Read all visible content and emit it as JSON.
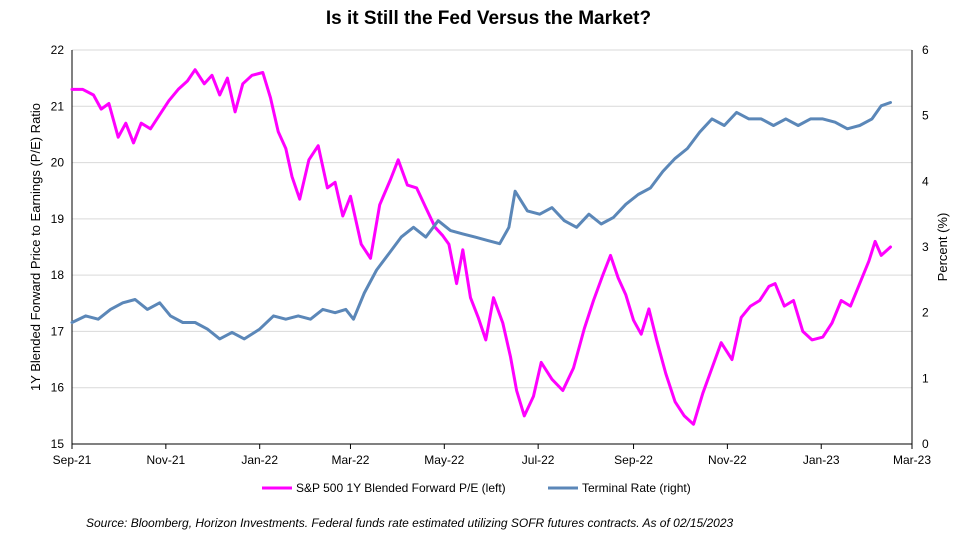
{
  "chart_data": {
    "type": "line",
    "title": "Is it Still the Fed Versus the Market?",
    "source": "Source: Bloomberg, Horizon Investments. Federal funds rate estimated utilizing SOFR futures contracts. As of 02/15/2023",
    "x_tick_labels": [
      "Sep-21",
      "Nov-21",
      "Jan-22",
      "Mar-22",
      "May-22",
      "Jul-22",
      "Sep-22",
      "Nov-22",
      "Jan-23",
      "Mar-23"
    ],
    "x_tick_dates": [
      "2021-09-01",
      "2021-11-01",
      "2022-01-01",
      "2022-03-01",
      "2022-05-01",
      "2022-07-01",
      "2022-09-01",
      "2022-11-01",
      "2023-01-01",
      "2023-03-01"
    ],
    "xlim": [
      "2021-09-01",
      "2023-03-01"
    ],
    "left_axis": {
      "label": "1Y Blended Forward Price to Earnings (P/E) Ratio",
      "ylim": [
        15,
        22
      ],
      "ticks": [
        15,
        16,
        17,
        18,
        19,
        20,
        21,
        22
      ]
    },
    "right_axis": {
      "label": "Percent (%)",
      "ylim": [
        0,
        6
      ],
      "ticks": [
        0,
        1,
        2,
        3,
        4,
        5,
        6
      ]
    },
    "grid": "horizontal",
    "legend_position": "bottom",
    "series": [
      {
        "name": "S&P 500 1Y Blended Forward P/E (left)",
        "axis": "left",
        "color": "#FF00FF",
        "points": [
          [
            "2021-09-01",
            21.3
          ],
          [
            "2021-09-08",
            21.3
          ],
          [
            "2021-09-15",
            21.2
          ],
          [
            "2021-09-20",
            20.95
          ],
          [
            "2021-09-25",
            21.05
          ],
          [
            "2021-10-01",
            20.45
          ],
          [
            "2021-10-06",
            20.7
          ],
          [
            "2021-10-11",
            20.35
          ],
          [
            "2021-10-16",
            20.7
          ],
          [
            "2021-10-22",
            20.6
          ],
          [
            "2021-10-28",
            20.85
          ],
          [
            "2021-11-03",
            21.1
          ],
          [
            "2021-11-09",
            21.3
          ],
          [
            "2021-11-15",
            21.45
          ],
          [
            "2021-11-20",
            21.65
          ],
          [
            "2021-11-26",
            21.4
          ],
          [
            "2021-12-01",
            21.55
          ],
          [
            "2021-12-06",
            21.2
          ],
          [
            "2021-12-11",
            21.5
          ],
          [
            "2021-12-16",
            20.9
          ],
          [
            "2021-12-21",
            21.4
          ],
          [
            "2021-12-27",
            21.55
          ],
          [
            "2022-01-03",
            21.6
          ],
          [
            "2022-01-08",
            21.15
          ],
          [
            "2022-01-13",
            20.55
          ],
          [
            "2022-01-18",
            20.25
          ],
          [
            "2022-01-22",
            19.75
          ],
          [
            "2022-01-27",
            19.35
          ],
          [
            "2022-02-02",
            20.05
          ],
          [
            "2022-02-08",
            20.3
          ],
          [
            "2022-02-14",
            19.55
          ],
          [
            "2022-02-19",
            19.65
          ],
          [
            "2022-02-24",
            19.05
          ],
          [
            "2022-03-01",
            19.4
          ],
          [
            "2022-03-08",
            18.55
          ],
          [
            "2022-03-14",
            18.3
          ],
          [
            "2022-03-20",
            19.25
          ],
          [
            "2022-03-27",
            19.7
          ],
          [
            "2022-04-01",
            20.05
          ],
          [
            "2022-04-07",
            19.6
          ],
          [
            "2022-04-13",
            19.55
          ],
          [
            "2022-04-19",
            19.2
          ],
          [
            "2022-04-25",
            18.85
          ],
          [
            "2022-04-30",
            18.7
          ],
          [
            "2022-05-04",
            18.55
          ],
          [
            "2022-05-09",
            17.85
          ],
          [
            "2022-05-13",
            18.45
          ],
          [
            "2022-05-18",
            17.6
          ],
          [
            "2022-05-23",
            17.25
          ],
          [
            "2022-05-28",
            16.85
          ],
          [
            "2022-06-02",
            17.6
          ],
          [
            "2022-06-08",
            17.15
          ],
          [
            "2022-06-13",
            16.55
          ],
          [
            "2022-06-17",
            15.95
          ],
          [
            "2022-06-22",
            15.5
          ],
          [
            "2022-06-28",
            15.85
          ],
          [
            "2022-07-03",
            16.45
          ],
          [
            "2022-07-10",
            16.15
          ],
          [
            "2022-07-17",
            15.95
          ],
          [
            "2022-07-24",
            16.35
          ],
          [
            "2022-07-31",
            17.05
          ],
          [
            "2022-08-06",
            17.55
          ],
          [
            "2022-08-12",
            18.0
          ],
          [
            "2022-08-17",
            18.35
          ],
          [
            "2022-08-22",
            17.95
          ],
          [
            "2022-08-27",
            17.65
          ],
          [
            "2022-09-01",
            17.2
          ],
          [
            "2022-09-06",
            16.95
          ],
          [
            "2022-09-11",
            17.4
          ],
          [
            "2022-09-16",
            16.85
          ],
          [
            "2022-09-22",
            16.25
          ],
          [
            "2022-09-28",
            15.75
          ],
          [
            "2022-10-04",
            15.5
          ],
          [
            "2022-10-10",
            15.35
          ],
          [
            "2022-10-16",
            15.9
          ],
          [
            "2022-10-22",
            16.35
          ],
          [
            "2022-10-28",
            16.8
          ],
          [
            "2022-11-04",
            16.5
          ],
          [
            "2022-11-10",
            17.25
          ],
          [
            "2022-11-16",
            17.45
          ],
          [
            "2022-11-22",
            17.55
          ],
          [
            "2022-11-28",
            17.8
          ],
          [
            "2022-12-02",
            17.85
          ],
          [
            "2022-12-08",
            17.45
          ],
          [
            "2022-12-14",
            17.55
          ],
          [
            "2022-12-20",
            17.0
          ],
          [
            "2022-12-26",
            16.85
          ],
          [
            "2023-01-02",
            16.9
          ],
          [
            "2023-01-08",
            17.15
          ],
          [
            "2023-01-14",
            17.55
          ],
          [
            "2023-01-20",
            17.45
          ],
          [
            "2023-01-26",
            17.85
          ],
          [
            "2023-02-01",
            18.25
          ],
          [
            "2023-02-05",
            18.6
          ],
          [
            "2023-02-09",
            18.35
          ],
          [
            "2023-02-15",
            18.5
          ]
        ]
      },
      {
        "name": "Terminal Rate (right)",
        "axis": "right",
        "color": "#5B87B8",
        "points": [
          [
            "2021-09-01",
            1.85
          ],
          [
            "2021-09-10",
            1.95
          ],
          [
            "2021-09-18",
            1.9
          ],
          [
            "2021-09-26",
            2.05
          ],
          [
            "2021-10-04",
            2.15
          ],
          [
            "2021-10-12",
            2.2
          ],
          [
            "2021-10-20",
            2.05
          ],
          [
            "2021-10-28",
            2.15
          ],
          [
            "2021-11-04",
            1.95
          ],
          [
            "2021-11-12",
            1.85
          ],
          [
            "2021-11-20",
            1.85
          ],
          [
            "2021-11-28",
            1.75
          ],
          [
            "2021-12-06",
            1.6
          ],
          [
            "2021-12-14",
            1.7
          ],
          [
            "2021-12-22",
            1.6
          ],
          [
            "2022-01-01",
            1.75
          ],
          [
            "2022-01-10",
            1.95
          ],
          [
            "2022-01-18",
            1.9
          ],
          [
            "2022-01-26",
            1.95
          ],
          [
            "2022-02-03",
            1.9
          ],
          [
            "2022-02-11",
            2.05
          ],
          [
            "2022-02-19",
            2.0
          ],
          [
            "2022-02-26",
            2.05
          ],
          [
            "2022-03-03",
            1.9
          ],
          [
            "2022-03-10",
            2.3
          ],
          [
            "2022-03-18",
            2.65
          ],
          [
            "2022-03-26",
            2.9
          ],
          [
            "2022-04-03",
            3.15
          ],
          [
            "2022-04-11",
            3.3
          ],
          [
            "2022-04-19",
            3.15
          ],
          [
            "2022-04-27",
            3.4
          ],
          [
            "2022-05-05",
            3.25
          ],
          [
            "2022-05-13",
            3.2
          ],
          [
            "2022-05-21",
            3.15
          ],
          [
            "2022-05-29",
            3.1
          ],
          [
            "2022-06-06",
            3.05
          ],
          [
            "2022-06-12",
            3.3
          ],
          [
            "2022-06-16",
            3.85
          ],
          [
            "2022-06-24",
            3.55
          ],
          [
            "2022-07-02",
            3.5
          ],
          [
            "2022-07-10",
            3.6
          ],
          [
            "2022-07-18",
            3.4
          ],
          [
            "2022-07-26",
            3.3
          ],
          [
            "2022-08-03",
            3.5
          ],
          [
            "2022-08-11",
            3.35
          ],
          [
            "2022-08-19",
            3.45
          ],
          [
            "2022-08-27",
            3.65
          ],
          [
            "2022-09-04",
            3.8
          ],
          [
            "2022-09-12",
            3.9
          ],
          [
            "2022-09-20",
            4.15
          ],
          [
            "2022-09-28",
            4.35
          ],
          [
            "2022-10-06",
            4.5
          ],
          [
            "2022-10-14",
            4.75
          ],
          [
            "2022-10-22",
            4.95
          ],
          [
            "2022-10-30",
            4.85
          ],
          [
            "2022-11-07",
            5.05
          ],
          [
            "2022-11-15",
            4.95
          ],
          [
            "2022-11-23",
            4.95
          ],
          [
            "2022-12-01",
            4.85
          ],
          [
            "2022-12-09",
            4.95
          ],
          [
            "2022-12-17",
            4.85
          ],
          [
            "2022-12-25",
            4.95
          ],
          [
            "2023-01-02",
            4.95
          ],
          [
            "2023-01-10",
            4.9
          ],
          [
            "2023-01-18",
            4.8
          ],
          [
            "2023-01-26",
            4.85
          ],
          [
            "2023-02-03",
            4.95
          ],
          [
            "2023-02-09",
            5.15
          ],
          [
            "2023-02-15",
            5.2
          ]
        ]
      }
    ]
  }
}
